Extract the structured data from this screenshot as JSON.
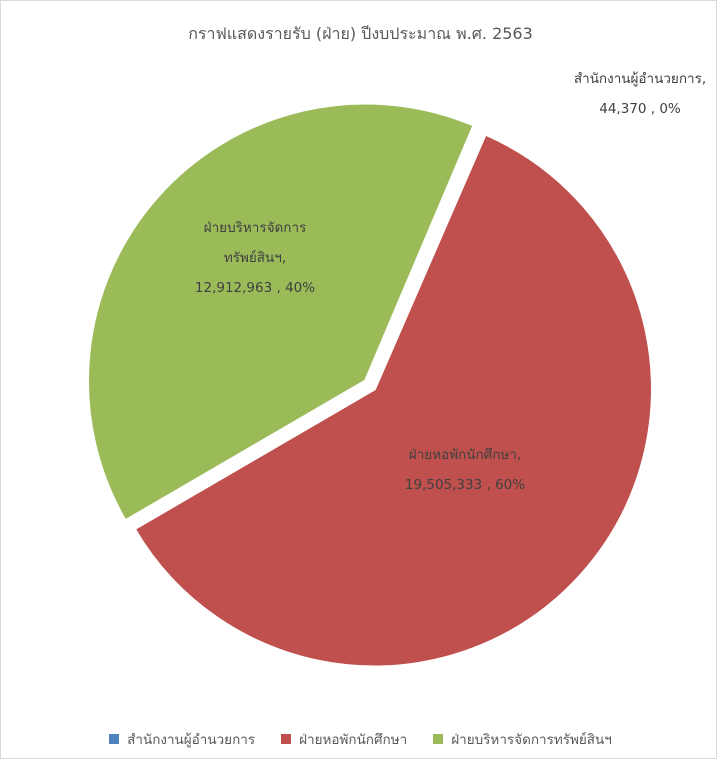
{
  "chart_data": {
    "type": "pie",
    "title": "กราฟแสดงรายรับ (ฝ่าย) ปีงบประมาณ พ.ศ. 2563",
    "slices": [
      {
        "label_line1": "สำนักงานผู้อำนวยการ,",
        "label_line2": "",
        "value_label": "44,370 , 0%",
        "legend": "สำนักงานผู้อำนวยการ",
        "value": 44370,
        "percent": 0,
        "color": "#4f81bd"
      },
      {
        "label_line1": "ฝ่ายหอพักนักศึกษา,",
        "label_line2": "",
        "value_label": "19,505,333 , 60%",
        "legend": "ฝ่ายหอพักนักศึกษา",
        "value": 19505333,
        "percent": 60,
        "color": "#c0504d"
      },
      {
        "label_line1": "ฝ่ายบริหารจัดการ",
        "label_line2": "ทรัพย์สินฯ,",
        "value_label": "12,912,963 , 40%",
        "legend": "ฝ่ายบริหารจัดการทรัพย์สินฯ",
        "value": 12912963,
        "percent": 40,
        "color": "#9bbb59"
      }
    ],
    "legend_position": "bottom"
  }
}
